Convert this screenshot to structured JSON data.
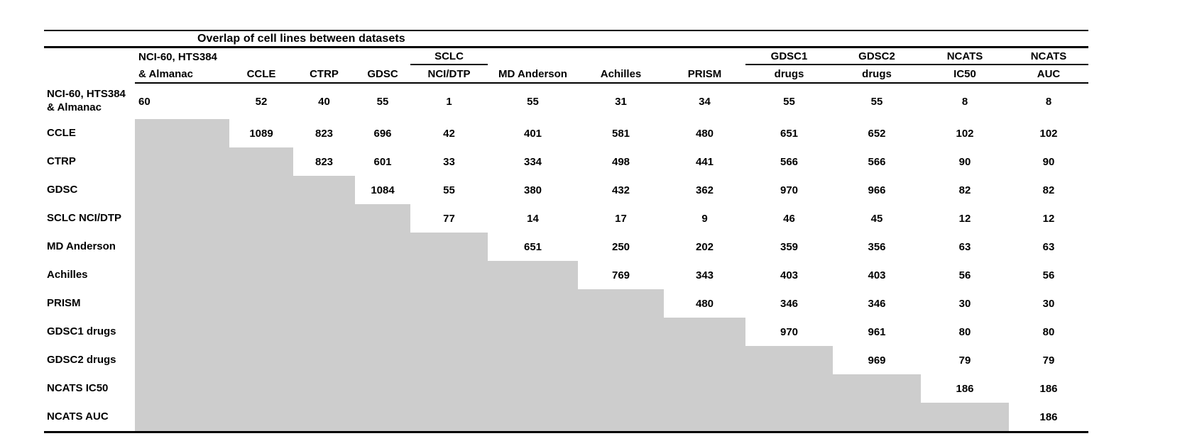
{
  "figure": {
    "shade_color": "#cdcdcd",
    "rule_color": "#000000",
    "background_color": "#ffffff"
  },
  "chart_data": {
    "type": "table",
    "title": "Overlap of cell lines between datasets",
    "layout": {
      "shading": "lower triangle shaded gray (staircase), upper triangle holds overlap counts",
      "grid": "no vertical rules; horizontal rules at top, below title, below headers, bottom",
      "header_underlines": "partial rule under SCLC column and under GDSC1/GDSC2/NCATS/NCATS group"
    },
    "header_row_1": [
      "",
      "NCI-60, HTS384",
      "",
      "",
      "",
      "SCLC",
      "",
      "",
      "",
      "GDSC1",
      "GDSC2",
      "NCATS",
      "NCATS"
    ],
    "header_row_2": [
      "",
      "& Almanac",
      "CCLE",
      "CTRP",
      "GDSC",
      "NCI/DTP",
      "MD Anderson",
      "Achilles",
      "PRISM",
      "drugs",
      "drugs",
      "IC50",
      "AUC"
    ],
    "header_group_underline_cols": [
      5,
      9,
      10,
      11,
      12
    ],
    "rows": [
      {
        "label": "NCI-60, HTS384 & Almanac",
        "shaded_count": 0,
        "values": [
          "60",
          "52",
          "40",
          "55",
          "1",
          "55",
          "31",
          "34",
          "55",
          "55",
          "8",
          "8"
        ]
      },
      {
        "label": "CCLE",
        "shaded_count": 1,
        "values": [
          "",
          "1089",
          "823",
          "696",
          "42",
          "401",
          "581",
          "480",
          "651",
          "652",
          "102",
          "102"
        ]
      },
      {
        "label": "CTRP",
        "shaded_count": 2,
        "values": [
          "",
          "",
          "823",
          "601",
          "33",
          "334",
          "498",
          "441",
          "566",
          "566",
          "90",
          "90"
        ]
      },
      {
        "label": "GDSC",
        "shaded_count": 3,
        "values": [
          "",
          "",
          "",
          "1084",
          "55",
          "380",
          "432",
          "362",
          "970",
          "966",
          "82",
          "82"
        ]
      },
      {
        "label": "SCLC NCI/DTP",
        "shaded_count": 4,
        "values": [
          "",
          "",
          "",
          "",
          "77",
          "14",
          "17",
          "9",
          "46",
          "45",
          "12",
          "12"
        ]
      },
      {
        "label": "MD Anderson",
        "shaded_count": 5,
        "values": [
          "",
          "",
          "",
          "",
          "",
          "651",
          "250",
          "202",
          "359",
          "356",
          "63",
          "63"
        ]
      },
      {
        "label": "Achilles",
        "shaded_count": 6,
        "values": [
          "",
          "",
          "",
          "",
          "",
          "",
          "769",
          "343",
          "403",
          "403",
          "56",
          "56"
        ]
      },
      {
        "label": "PRISM",
        "shaded_count": 7,
        "values": [
          "",
          "",
          "",
          "",
          "",
          "",
          "",
          "480",
          "346",
          "346",
          "30",
          "30"
        ]
      },
      {
        "label": "GDSC1 drugs",
        "shaded_count": 8,
        "values": [
          "",
          "",
          "",
          "",
          "",
          "",
          "",
          "",
          "970",
          "961",
          "80",
          "80"
        ]
      },
      {
        "label": "GDSC2 drugs",
        "shaded_count": 9,
        "values": [
          "",
          "",
          "",
          "",
          "",
          "",
          "",
          "",
          "",
          "969",
          "79",
          "79"
        ]
      },
      {
        "label": "NCATS IC50",
        "shaded_count": 10,
        "values": [
          "",
          "",
          "",
          "",
          "",
          "",
          "",
          "",
          "",
          "",
          "186",
          "186"
        ]
      },
      {
        "label": "NCATS AUC",
        "shaded_count": 11,
        "values": [
          "",
          "",
          "",
          "",
          "",
          "",
          "",
          "",
          "",
          "",
          "",
          "186"
        ]
      }
    ]
  }
}
